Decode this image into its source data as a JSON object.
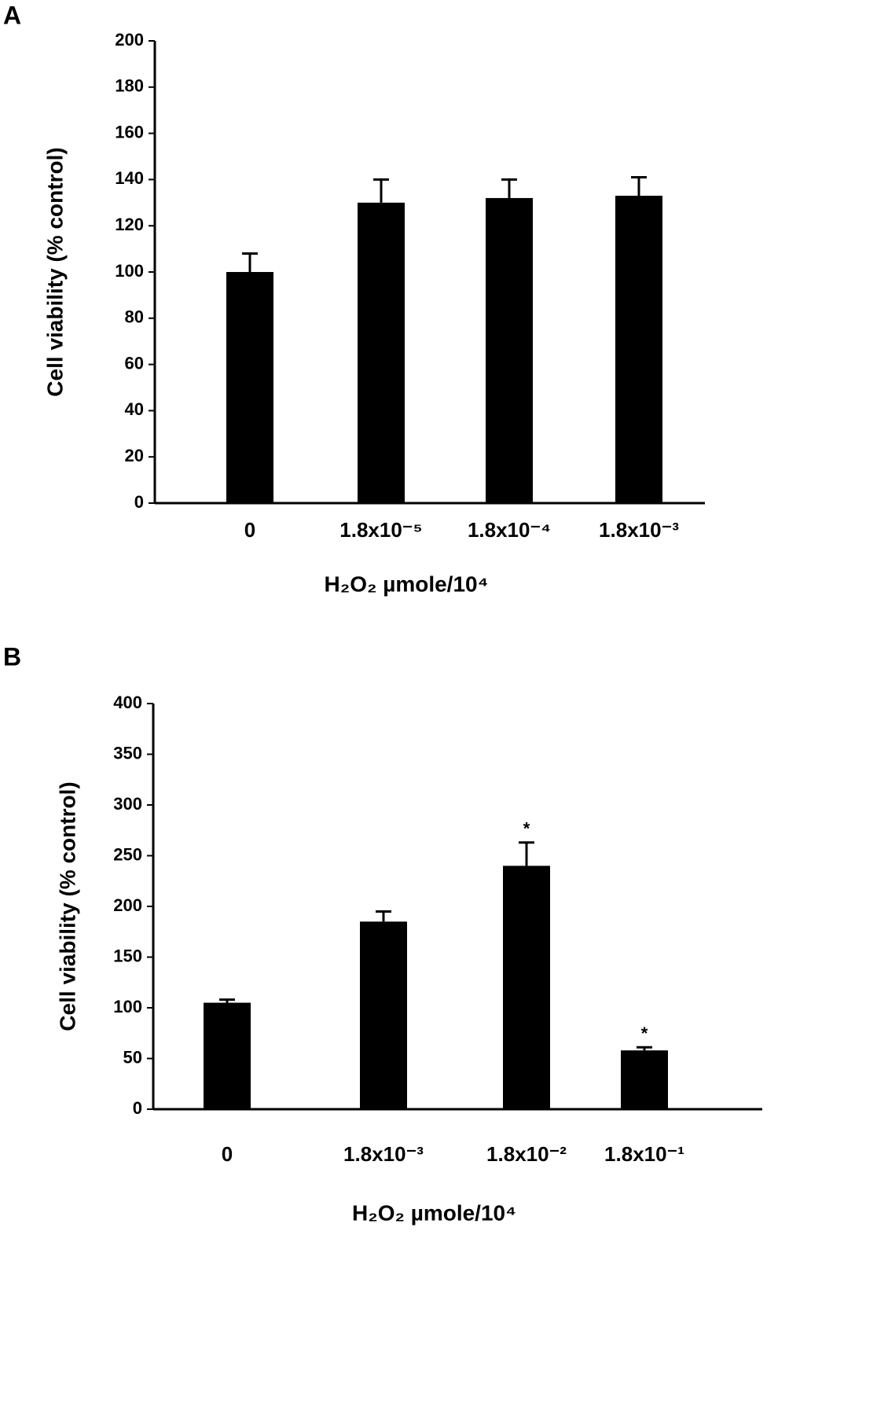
{
  "chart_data": [
    {
      "type": "bar",
      "panel": "A",
      "ylabel": "Cell viability (% control)",
      "xlabel": "H₂O₂ µmole/10⁴",
      "categories": [
        "0",
        "1.8x10⁻⁵",
        "1.8x10⁻⁴",
        "1.8x10⁻³"
      ],
      "values": [
        100,
        130,
        132,
        133
      ],
      "errors": [
        8,
        10,
        8,
        8
      ],
      "color": "#000000",
      "ylim": [
        0,
        200
      ],
      "yticks": [
        0,
        20,
        40,
        60,
        80,
        100,
        120,
        140,
        160,
        180,
        200
      ]
    },
    {
      "type": "bar",
      "panel": "B",
      "ylabel": "Cell viability (% control)",
      "xlabel": "H₂O₂ µmole/10⁴",
      "categories": [
        "0",
        "1.8x10⁻³",
        "1.8x10⁻²",
        "1.8x10⁻¹"
      ],
      "values": [
        105,
        185,
        240,
        58
      ],
      "errors": [
        3,
        10,
        23,
        3
      ],
      "color": "#000000",
      "value_annotations": [
        null,
        null,
        "*",
        "*"
      ],
      "ylim": [
        0,
        400
      ],
      "yticks": [
        0,
        50,
        100,
        150,
        200,
        250,
        300,
        350,
        400
      ]
    }
  ]
}
